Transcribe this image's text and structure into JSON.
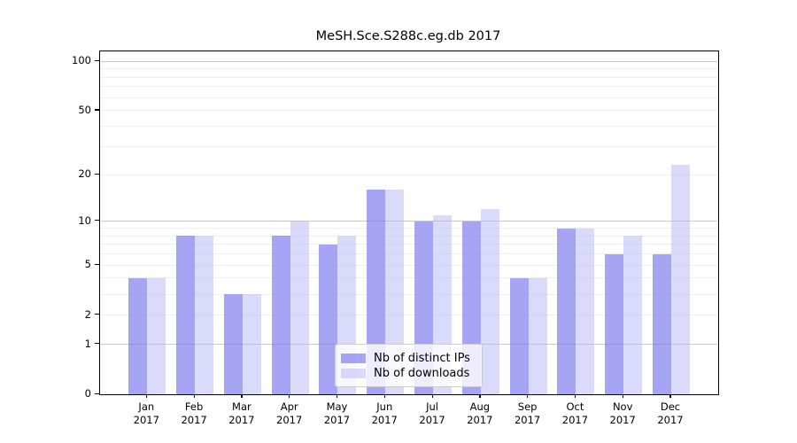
{
  "chart_data": {
    "type": "bar",
    "title": "MeSH.Sce.S288c.eg.db 2017",
    "categories": [
      "Jan",
      "Feb",
      "Mar",
      "Apr",
      "May",
      "Jun",
      "Jul",
      "Aug",
      "Sep",
      "Oct",
      "Nov",
      "Dec"
    ],
    "category_year": "2017",
    "series": [
      {
        "name": "Nb of distinct IPs",
        "color": "rgba(116,116,238,0.65)",
        "values": [
          4,
          8,
          3,
          8,
          7,
          16,
          10,
          10,
          4,
          9,
          6,
          6
        ]
      },
      {
        "name": "Nb of downloads",
        "color": "rgba(184,184,246,0.52)",
        "values": [
          4,
          8,
          3,
          10,
          8,
          16,
          11,
          12,
          4,
          9,
          8,
          23
        ]
      }
    ],
    "yscale": "log1p",
    "ylim": [
      0,
      115
    ],
    "ytick_labels": [
      0,
      1,
      2,
      5,
      10,
      20,
      50,
      100
    ],
    "major_gridlines": [
      1,
      10,
      100
    ],
    "minor_gridlines": [
      2,
      3,
      4,
      5,
      6,
      7,
      8,
      9,
      20,
      30,
      40,
      50,
      60,
      70,
      80,
      90
    ],
    "grid": true,
    "legend_position": "bottom-center",
    "xlabel": "",
    "ylabel": ""
  },
  "colors": {
    "axis": "#000000",
    "grid_major": "#c9c9c9",
    "grid_minor": "#efefef",
    "background": "#ffffff"
  }
}
